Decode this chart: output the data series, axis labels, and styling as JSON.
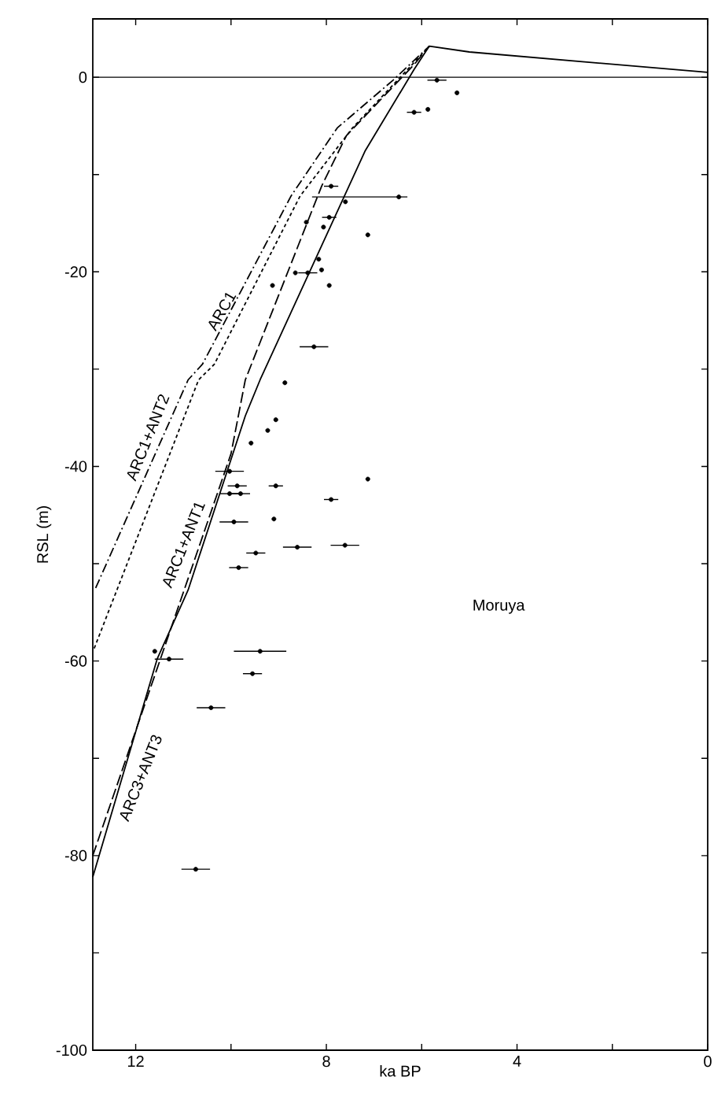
{
  "chart_data": {
    "type": "line",
    "xlabel": "ka BP",
    "ylabel": "RSL (m)",
    "xlim": [
      12.9,
      0
    ],
    "ylim": [
      -100,
      6
    ],
    "xticks": [
      12,
      {
        "value": 10,
        "label": null
      },
      8,
      {
        "value": 6,
        "label": null
      },
      4,
      {
        "value": 2,
        "label": null
      },
      0
    ],
    "yticks": [
      0,
      {
        "value": -10,
        "label": null
      },
      -20,
      {
        "value": -30,
        "label": null
      },
      -40,
      {
        "value": -50,
        "label": null
      },
      -60,
      {
        "value": -70,
        "label": null
      },
      -80,
      {
        "value": -90,
        "label": null
      },
      -100
    ],
    "grid": false,
    "annotations": [
      "Moruya"
    ],
    "ref_lines": [
      {
        "axis": "y",
        "value": 0,
        "color": "#000000",
        "line_style": "solid"
      }
    ],
    "series": [
      {
        "name": "ARC1",
        "color": "#000000",
        "line_style": "dashdot",
        "x": [
          12.84,
          10.9,
          10.6,
          8.74,
          7.77,
          6.6,
          5.84
        ],
        "values": [
          -52.5,
          -31.1,
          -29.5,
          -12.2,
          -5.2,
          -0.3,
          3.2
        ]
      },
      {
        "name": "ARC1+ANT2",
        "color": "#000000",
        "line_style": "dotted",
        "x": [
          12.87,
          10.68,
          10.35,
          8.55,
          7.45,
          6.45,
          5.84
        ],
        "values": [
          -58.7,
          -31.1,
          -29.5,
          -12.2,
          -5.2,
          0,
          3.2
        ]
      },
      {
        "name": "ARC1+ANT1",
        "color": "#000000",
        "line_style": "dashed",
        "x": [
          12.9,
          10.0,
          9.7,
          8.1,
          7.58,
          6.16,
          5.84
        ],
        "values": [
          -80,
          -38.7,
          -31.1,
          -11.2,
          -6.0,
          1.3,
          3.2
        ]
      },
      {
        "name": "ARC3+ANT3",
        "color": "#000000",
        "line_style": "solid",
        "x": [
          12.9,
          11.55,
          10.9,
          9.7,
          9.39,
          7.19,
          6.16,
          5.84,
          5.0,
          0
        ],
        "values": [
          -82.2,
          -59.8,
          -52.7,
          -34.8,
          -31.1,
          -7.6,
          0.8,
          3.2,
          2.6,
          0.5
        ]
      },
      {
        "type": "scatter",
        "color": "#000000",
        "marker": "circle",
        "x": [
          5.68,
          5.26,
          6.16,
          5.87,
          7.9,
          6.48,
          7.6,
          7.94,
          8.06,
          8.42,
          7.13,
          8.16,
          8.39,
          8.65,
          8.1,
          7.94,
          9.13,
          8.26,
          8.87,
          9.06,
          9.23,
          9.58,
          10.03,
          9.87,
          9.8,
          10.03,
          9.06,
          7.13,
          7.9,
          9.94,
          9.1,
          8.61,
          7.61,
          9.48,
          9.84,
          9.39,
          11.6,
          11.3,
          9.55,
          10.42,
          10.74
        ],
        "values": [
          -0.3,
          -1.6,
          -3.6,
          -3.3,
          -11.2,
          -12.3,
          -12.8,
          -14.4,
          -15.4,
          -14.9,
          -16.2,
          -18.7,
          -20.1,
          -20.1,
          -19.8,
          -21.4,
          -21.4,
          -27.7,
          -31.4,
          -35.2,
          -36.3,
          -37.6,
          -40.5,
          -42.0,
          -42.8,
          -42.8,
          -42.0,
          -41.3,
          -43.4,
          -45.7,
          -45.4,
          -48.3,
          -48.1,
          -48.9,
          -50.4,
          -59.0,
          -59.0,
          -59.8,
          -61.3,
          -64.8,
          -81.4
        ],
        "xerrors": [
          0.2,
          null,
          0.15,
          null,
          0.15,
          [
            6.3,
            8.3
          ],
          null,
          0.15,
          null,
          null,
          null,
          null,
          0.2,
          null,
          null,
          null,
          null,
          0.3,
          null,
          null,
          null,
          null,
          0.3,
          0.2,
          0.2,
          0.2,
          0.15,
          null,
          0.15,
          0.3,
          null,
          0.3,
          0.3,
          0.2,
          0.2,
          [
            8.84,
            9.94
          ],
          null,
          0.3,
          0.2,
          0.3,
          0.3
        ]
      }
    ]
  }
}
